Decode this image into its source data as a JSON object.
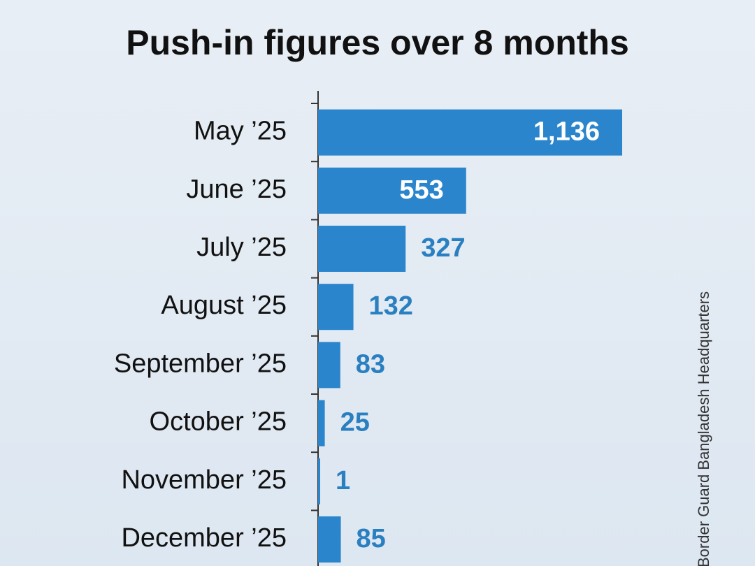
{
  "chart_data": {
    "type": "bar",
    "orientation": "horizontal",
    "title": "Push-in figures over 8 months",
    "categories": [
      "May ’25",
      "June ’25",
      "July ’25",
      "August ’25",
      "September ’25",
      "October ’25",
      "November ’25",
      "December ’25"
    ],
    "values": [
      1136,
      553,
      327,
      132,
      83,
      25,
      1,
      85
    ],
    "value_labels": [
      "1,136",
      "553",
      "327",
      "132",
      "83",
      "25",
      "1",
      "85"
    ],
    "color": "#2a85cc",
    "source": "Border Guard Bangladesh Headquarters"
  }
}
